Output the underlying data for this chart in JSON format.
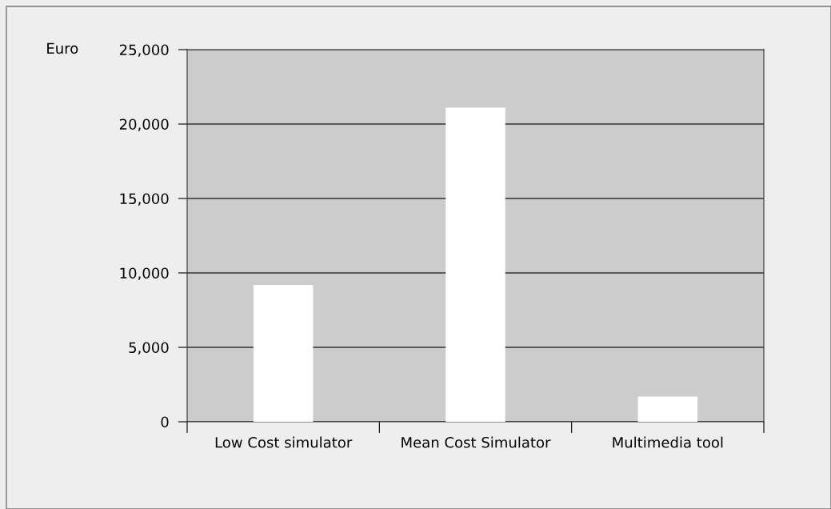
{
  "chart_data": {
    "type": "bar",
    "ylabel": "Euro",
    "categories": [
      "Low Cost simulator",
      "Mean Cost Simulator",
      "Multimedia tool"
    ],
    "values": [
      9200,
      21100,
      1700
    ],
    "color": "#ffffff",
    "ylim": [
      0,
      25000
    ],
    "yticks": [
      {
        "value": 0,
        "label": "0"
      },
      {
        "value": 5000,
        "label": "5,000"
      },
      {
        "value": 10000,
        "label": "10,000"
      },
      {
        "value": 15000,
        "label": "15,000"
      },
      {
        "value": 20000,
        "label": "20,000"
      },
      {
        "value": 25000,
        "label": "25,000"
      }
    ],
    "grid": "y"
  }
}
